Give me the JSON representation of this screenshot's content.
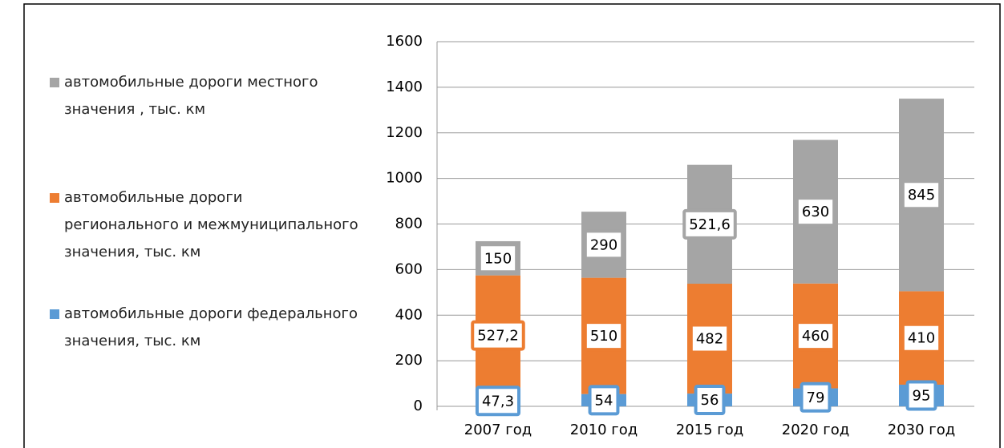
{
  "chart_data": {
    "type": "bar",
    "stacked": true,
    "categories": [
      "2007 год",
      "2010 год",
      "2015 год",
      "2020 год",
      "2030 год"
    ],
    "series": [
      {
        "name": "автомобильные дороги федерального значения, тыс. км",
        "color": "#5b9bd5",
        "values": [
          47.3,
          54,
          56,
          79,
          95
        ],
        "value_labels": [
          "47,3",
          "54",
          "56",
          "79",
          "95"
        ]
      },
      {
        "name": "автомобильные дороги регионального и межмуниципального значения, тыс. км",
        "color": "#ed7d31",
        "values": [
          527.2,
          510,
          482,
          460,
          410
        ],
        "value_labels": [
          "527,2",
          "510",
          "482",
          "460",
          "410"
        ]
      },
      {
        "name": "автомобильные дороги местного значения , тыс. км",
        "color": "#a5a5a5",
        "values": [
          150,
          290,
          521.6,
          630,
          845
        ],
        "value_labels": [
          "150",
          "290",
          "521,6",
          "630",
          "845"
        ]
      }
    ],
    "ylim": [
      0,
      1600
    ],
    "yticks": [
      0,
      200,
      400,
      600,
      800,
      1000,
      1200,
      1400,
      1600
    ],
    "grid": true,
    "legend": "left"
  }
}
